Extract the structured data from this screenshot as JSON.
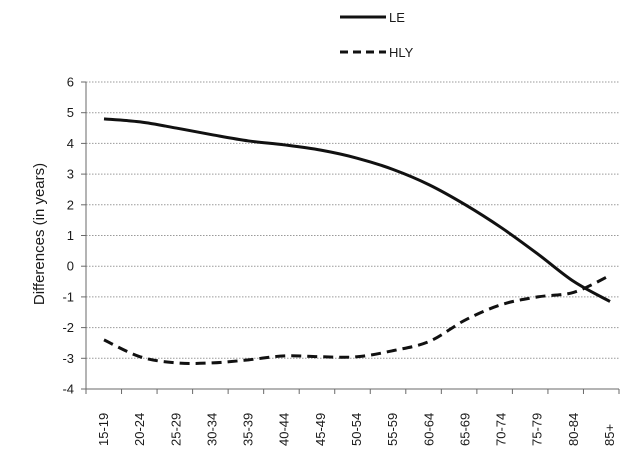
{
  "chart_data": {
    "type": "line",
    "categories": [
      "15-19",
      "20-24",
      "25-29",
      "30-34",
      "35-39",
      "40-44",
      "45-49",
      "50-54",
      "55-59",
      "60-64",
      "65-69",
      "70-74",
      "75-79",
      "80-84",
      "85+"
    ],
    "series": [
      {
        "name": "LE",
        "style": "solid",
        "values": [
          4.8,
          4.7,
          4.5,
          4.28,
          4.08,
          3.95,
          3.78,
          3.52,
          3.15,
          2.65,
          2.0,
          1.25,
          0.4,
          -0.5,
          -1.15
        ]
      },
      {
        "name": "HLY",
        "style": "dashed",
        "values": [
          -2.4,
          -2.95,
          -3.15,
          -3.15,
          -3.05,
          -2.92,
          -2.95,
          -2.95,
          -2.75,
          -2.45,
          -1.75,
          -1.25,
          -1.0,
          -0.85,
          -0.3
        ]
      }
    ],
    "ylabel": "Differences (in years)",
    "xlabel": "",
    "ylim": [
      -4,
      6
    ],
    "yticks": [
      6,
      5,
      4,
      3,
      2,
      1,
      0,
      -1,
      -2,
      -3,
      -4
    ],
    "grid": true,
    "legend_position": "top"
  }
}
